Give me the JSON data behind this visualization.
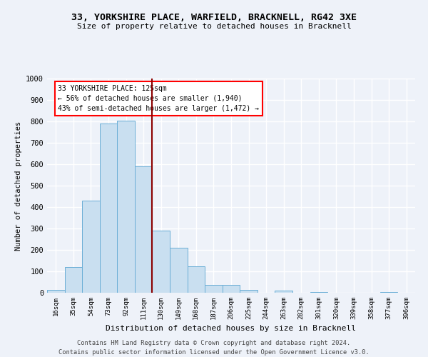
{
  "title_line1": "33, YORKSHIRE PLACE, WARFIELD, BRACKNELL, RG42 3XE",
  "title_line2": "Size of property relative to detached houses in Bracknell",
  "xlabel": "Distribution of detached houses by size in Bracknell",
  "ylabel": "Number of detached properties",
  "categories": [
    "16sqm",
    "35sqm",
    "54sqm",
    "73sqm",
    "92sqm",
    "111sqm",
    "130sqm",
    "149sqm",
    "168sqm",
    "187sqm",
    "206sqm",
    "225sqm",
    "244sqm",
    "263sqm",
    "282sqm",
    "301sqm",
    "320sqm",
    "339sqm",
    "358sqm",
    "377sqm",
    "396sqm"
  ],
  "values": [
    15,
    120,
    430,
    790,
    805,
    590,
    290,
    210,
    125,
    38,
    38,
    12,
    0,
    10,
    0,
    5,
    0,
    0,
    0,
    5,
    0
  ],
  "bar_color": "#c9dff0",
  "bar_edge_color": "#6aaed6",
  "vline_color": "#8b0000",
  "annotation_text": "33 YORKSHIRE PLACE: 125sqm\n← 56% of detached houses are smaller (1,940)\n43% of semi-detached houses are larger (1,472) →",
  "annotation_box_color": "white",
  "annotation_box_edge_color": "red",
  "ylim": [
    0,
    1000
  ],
  "yticks": [
    0,
    100,
    200,
    300,
    400,
    500,
    600,
    700,
    800,
    900,
    1000
  ],
  "footer_line1": "Contains HM Land Registry data © Crown copyright and database right 2024.",
  "footer_line2": "Contains public sector information licensed under the Open Government Licence v3.0.",
  "bg_color": "#eef2f9",
  "grid_color": "white"
}
